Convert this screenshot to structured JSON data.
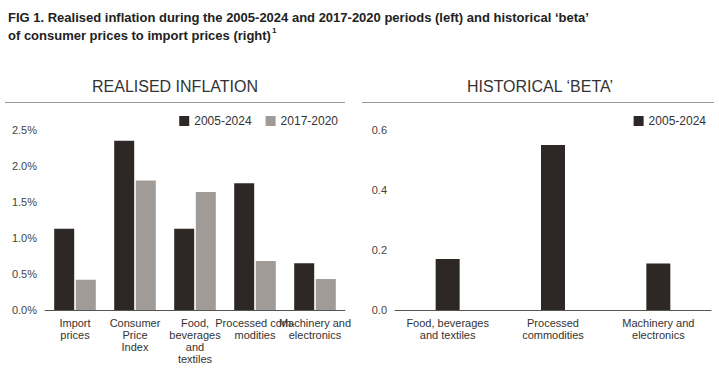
{
  "title": "FIG 1. Realised inflation during the 2005-2024 and 2017-2020 periods (left) and historical ‘beta’\nof consumer prices to import prices (right)",
  "title_footnote": "1",
  "chart_data": [
    {
      "type": "bar",
      "title": "REALISED INFLATION",
      "categories": [
        "Import\nprices",
        "Consumer\nPrice\nIndex",
        "Food,\nbeverages\nand\ntextiles",
        "Processed com-\nmodities",
        "Machinery and\nelectronics"
      ],
      "series": [
        {
          "name": "2005-2024",
          "color": "#2d2826",
          "values": [
            1.13,
            2.35,
            1.13,
            1.76,
            0.65
          ]
        },
        {
          "name": "2017-2020",
          "color": "#a09b96",
          "values": [
            0.42,
            1.8,
            1.64,
            0.68,
            0.43
          ]
        }
      ],
      "ylim": [
        0,
        2.5
      ],
      "yticks": [
        {
          "value": 0,
          "label": "0.0%"
        },
        {
          "value": 0.5,
          "label": "0.5%"
        },
        {
          "value": 1,
          "label": "1.0%"
        },
        {
          "value": 1.5,
          "label": "1.5%"
        },
        {
          "value": 2,
          "label": "2.0%"
        },
        {
          "value": 2.5,
          "label": "2.5%"
        }
      ],
      "grid": false,
      "legend": "upper right",
      "data_labels": false
    },
    {
      "type": "bar",
      "title": "HISTORICAL ‘BETA’",
      "categories": [
        "Food, beverages\nand textiles",
        "Processed\ncommodities",
        "Machinery and\nelectronics"
      ],
      "series": [
        {
          "name": "2005-2024",
          "color": "#2d2826",
          "values": [
            0.17,
            0.55,
            0.155
          ]
        }
      ],
      "ylim": [
        0,
        0.6
      ],
      "yticks": [
        {
          "value": 0,
          "label": "0.0"
        },
        {
          "value": 0.2,
          "label": "0.2"
        },
        {
          "value": 0.4,
          "label": "0.4"
        },
        {
          "value": 0.6,
          "label": "0.6"
        }
      ],
      "grid": false,
      "legend": "upper right",
      "data_labels": false
    }
  ]
}
